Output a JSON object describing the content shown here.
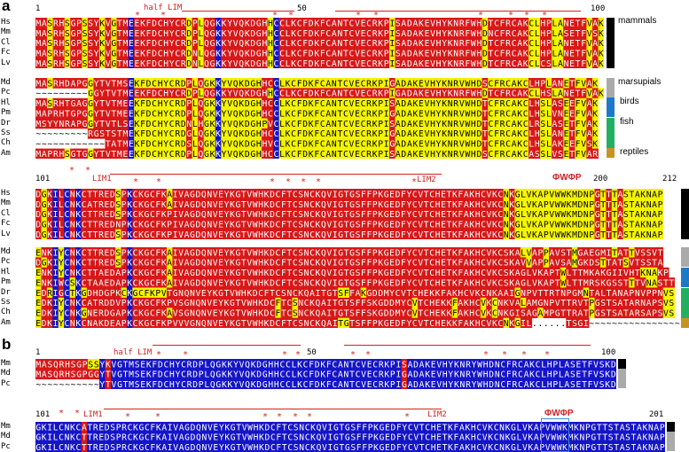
{
  "panel_a": {
    "letter": "a",
    "block1": {
      "start_num": "1",
      "mid_num": "50",
      "end_num": "100",
      "feature": "half LIM",
      "species": [
        "Hs",
        "Mm",
        "Cl",
        "Fc",
        "Lv",
        "Md",
        "Pc",
        "Hl",
        "Pm",
        "Dr",
        "Ss",
        "Ch",
        "Am"
      ],
      "rows": [
        "MASRHSGPSSYKVGTMEEKFDCHYCRDPLQGKKYVQKDGHHCCLKCFDKFCANTCVECRKPISADAKEVHYKNRFWHDTCFRCAKCLHPLANETFVAK",
        "MASRHSGPSSYKVGTMEEKFDCHYCRDPLQGKKYVQKDGHHCCLKCFDKFCANTCVECRKPISADAKEVHYKNRFWHDNCFRCAKCLHPLASETFVSK",
        "MASRHSGPSSYKVGTMEEKFDCHYCRDPLQGKKYVQKDGHHCCLKCFDKFCANTCVECRKPISADAKEVHYKNRFWHDTCFRCAKCLHPLANETFVAK",
        "MASRHSGPSSYKVGTMEEKFDCHYCRDNLQGKKYVQKDGHHCCLKCFDKFCANTCVECRKPISADAKEVHYKNRFWHDTCFRCAKCLHPLANETFVAK",
        "MASRHSGPSSYKVGTMEEKFDCHYCRDNLQGKKYVQKDGHHCCLKCFDKFCANTCVECRKPISADAKEVHYKNRFWHDTCFRCAKCLCSLANETFVAK",
        "MASRHDAPGGYTVTMSEKFDCHYCRDPLQGKKYVQKDGHHCCLKCFDKFCANTCVECRKPIGADAKEVHYKNRVWHDSCFRCAKCLHPLANETFVAK",
        "~~~~~~~~~GGYTVTMEEKFDCHYCRDPLQGKKYVQKDGHHCCLKCFDKFCANTCVECRKPIGADAKEVHYKNRFWHDTCFRCAKCLHSLANETFVAK",
        "MASRHTGAGGYTVTMEEKFDCHYCRDPLQGKKYVQKDGHHCCLKCFDKFCANTCVECRKPISADAKEVHYKNRVWHDTCFRCAKCLHSLASEEFVAK",
        "MAPRHTGPGGYTVTMEEKFDCHYCRDPLQGKKYVQKDGHHCCLKCFDKFCANTCVECRKPIGADAKEVHYKNRVWHDTCFRCAKCLHSLVNEEFVAK",
        "MSYYNRAPGGYTVTLSEKFDCHYCRDNLHGKKYVQKDGHPVCLKCFDKFCANTCVECRKPISADAKEVHYKNRVWHDTCFRCAKCLRSLASETFVAK",
        "~~~~~~~~~RGSTSTMEKFDCHYCRDGLQGKKYVQKDGHHCCLKCFDKFCANTCVECRKPIGADAKEVHYKNRVWHDTCFRCAKCLHSLANETFVAK",
        "~~~~~~~~~~~~TATMEKFDCHYCRDSLQGKKYVQKDGHHVCLKCFDKFCANTCVECRKPIGADAKEVHYKNRVWHDTCFRCAKCLHSLAKEEFVSK",
        "MAPRHSGTGGYTVTMEEKFDCHYCRDPLQGKKYVQKDGHHCCLKCFDKFCANTCVECRKPISADAKEVHYKNRVWHDSCFRCAKCASSLVSETFVAR"
      ]
    },
    "block2": {
      "start_num": "101",
      "mid_num": "200",
      "end_num": "212",
      "lim1": "LIM1",
      "lim2": "LIM2",
      "motif": "ΦWΦP",
      "species": [
        "Hs",
        "Mm",
        "Cl",
        "Fc",
        "Lv",
        "Md",
        "Pc",
        "Hl",
        "Pm",
        "Dr",
        "Ss",
        "Ch",
        "Am"
      ],
      "rows": [
        "DGKILCNKCTTREDSPKCKGCFKAIVAGDQNVEYKGTVWHKDCFTCSNCKQVIGTGSFFPKGEDFYCVTCHETKFAKHCVKCNKGLVKAPVWWKMDNPGTTTASTAKNAP",
        "DGKILCNKCATREDSPKCKGCFKAIVAGDQNVEYKGTVWHKDCFTCSNCKQVIGTGSFFPKGEDFYCVTCHETKFAKHCVKCNKGLVKAPVWWKMDNPGTTTASTAKNAP",
        "DGKILCNKCTTREDSPKCKGCFKPIVAGDQNVEYKGTVWHKDCFTCSNCKQVIGTGSFFPKGEDFYCVTCHETKFAKHCVKCNKGLVKAPVWWKMDNPGTTTASTAKNAP",
        "DGKILCNKCTTREDNPKCKGCFKPIVAGDQNVEYKGTVWHKDCFTCSNCKQVIGTGSFFPKGEDFYCVTCHETKFAKHCVKCNKGLVKAPVWWKMDNPGTTTASTAKNAP",
        "DGKILCNKCTTREDSPKCKGCFKPIVAGDQNVEYKGTVWHKDCFTCSNCKQVIGTGSFFPKGEDFYCVTCHETKFAKHCVKCNKGLVKAPVWWKMDNPGTTTASTAKNAP",
        "ENKIYCNKCTTREDSPKCKGCFKAIVAGDQNVEYKGTVWHKDCFTCSNCKQVIGTGSFFPKGEDFYCVTCHETKFAKHCVKCSKALVAPPAVSTMGAEGMITATTVSSVT",
        "DGKIYCNKCTTREDSPKCKGCFKAIVAGDQNVEYKGTVWHKDCFTCSNCKQVIGTGSFFPKGEDFYCVTCHETKFAKHCVKCSKAVVAPPAVSAMGKDSTTATSVTSSTA",
        "ENKIYCNKCTTAEDAPKCKGCFKAIVAGDQNVEYKGTVWHKDCFTCSNCKQVIGTGSFFPKGEDFYCVTCHETKFAKHCVKCSKAGLVKAPTWLTTMKAKGIIVHTKNAKP",
        "ENKIWCSKCTAAEDAPKCKGCFKAIVAGDQNVEYKGTVWHKDCFTCSNCKQVIGTGSFFPKGEDFYCVTCHETKFAKHCVKCSKAGLVKAPTWLTTMRSKGSSTTTVNASTT",
        "EDRIGCTKGDHDGPKCKGCFKPVTGNQNVEYKGTVWHKDCFTCSNCKQAITGTSFFAKGDDMYCVTCHEKKFAKHCVKCNKAAIGNPVTTRTNPGMNTALTANAPNVPPNVS",
        "EDKIYCNKCATRDDVPKCKGCFKPVSGNQNVEYKGTVWHKDCFTCSNCKQAITGTSFFSKGDDMYCVTCHEKKFAKHCVKCNKVALAMGNPVTTRVTPGSTSATARNAPSVS",
        "EDKIYCNKGNERDGAPKCKGCFKAVSGNQNVEYKGTVWHKDCFTCSNCKQAITGTSFFSKGDDMYCVTCHEKKFAKHCVKCNKGISAGAMPGTTRATPGSTSATARSAPSVS",
        "EDKIYCNKCNAKDEAPKCKGCFKPVVVGNQNVEYKGTVWHKDCFTCSNCKQAITGTSFFPKGEDFYCVTCHEKKFAKHCVKCNKGIL......TSGI~~~~~~~~~~~~~~~~"
      ]
    },
    "groups": [
      "mammals",
      "marsupials",
      "birds",
      "fish",
      "reptiles"
    ]
  },
  "panel_b": {
    "letter": "b",
    "block1": {
      "start_num": "1",
      "mid_num": "50",
      "end_num": "100",
      "feature": "half LIM",
      "species": [
        "Mm",
        "Md",
        "Pc"
      ],
      "rows": [
        "MASQRHSGPSSYKVGTMSEKFDCHYCRDPLQGKKYVQKDGHHCCLKCFDKFCANTCVECRKPISADAKEVHYKNRYWHDNCFRCAKCLHPLASETFVSKD",
        "MASQRHSGPGGYTVGTMSEKFDCHYCRDPLQGKKYVQKDGHHCCLKCFDKFCANTCVECRKPIGADAKEVHYKNRYWHDNCFRCAKCLHPLASETFVSKD",
        "~~~~~~~~~~~YTVGTMSEKFDCHYCRDPLQGKKYVQKDGHHCCLKCFDKFCANTCVECRKPIGADAKEVHYKNRYWHDNCFRCAKCLHPLASETFVSKD"
      ]
    },
    "block2": {
      "start_num": "101",
      "end_num": "201",
      "lim1": "LIM1",
      "lim2": "LIM2",
      "motif": "ΦWΦP",
      "species": [
        "Mm",
        "Md",
        "Pc"
      ],
      "rows": [
        "GKILCNKCATREDSPRCKGCFKAIVAGDQNVEYKGTVWHKDCFTCSNCKQVIGTGSFFPKGEDFYCVTCHETKFAKHCVKCNKGLVKAPVWWKMKNPGTTSTASTAKNAP",
        "GKILCNKCTTREDSPRCKGCFKAIVAGDQNVEYKGTVWHKDCFTCSNCKQVIGTGSFFPKGEDFYCVTCHETKFAKHCVKCNKGLVKAPVWWKMKNPGTTSTASTAKNAP",
        "GKILCNKCTTREDSPRCKGCFKAIVAGDQNVEYKGTVWHKDCFTCSNCKQVIGTGSFFPKGEDFYCVTCHETKFAKHCVKCNKGLVKAPVWWKMKNPGTTSTASTAKNAP"
      ]
    }
  },
  "colors": {
    "identical": "#1515c8",
    "conserved": "#d81818",
    "similar": "#f4f400",
    "motif_bg": "#44e6ee",
    "annot": "#d62020",
    "mammals": "#000000",
    "marsupials": "#aaaaaa",
    "birds": "#1e78c8",
    "fish": "#22b060",
    "reptiles": "#c89420"
  }
}
